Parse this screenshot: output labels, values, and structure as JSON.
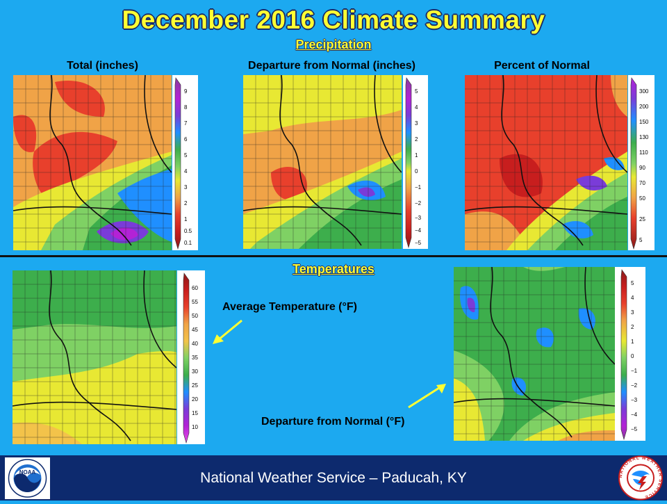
{
  "title": "December 2016 Climate Summary",
  "precipitation": {
    "heading": "Precipitation",
    "panels": [
      {
        "label": "Total (inches)",
        "legend": [
          "9",
          "8",
          "7",
          "6",
          "5",
          "4",
          "3",
          "2",
          "1",
          "0.5",
          "0.1"
        ]
      },
      {
        "label": "Departure  from Normal (inches)",
        "legend": [
          "5",
          "4",
          "3",
          "2",
          "1",
          "0",
          "−1",
          "−2",
          "−3",
          "−4",
          "−5"
        ]
      },
      {
        "label": "Percent of Normal",
        "legend": [
          "300",
          "200",
          "150",
          "130",
          "110",
          "90",
          "70",
          "50",
          "25",
          "5"
        ]
      }
    ]
  },
  "temperatures": {
    "heading": "Temperatures",
    "panels": [
      {
        "label": "Average Temperature (°F)",
        "legend": [
          "60",
          "55",
          "50",
          "45",
          "40",
          "35",
          "30",
          "25",
          "20",
          "15",
          "10"
        ]
      },
      {
        "label": "Departure  from Normal (°F)",
        "legend": [
          "5",
          "4",
          "3",
          "2",
          "1",
          "0",
          "−1",
          "−2",
          "−3",
          "−4",
          "−5"
        ]
      }
    ]
  },
  "footer": "National Weather Service – Paducah, KY",
  "logos": {
    "noaa": "NOAA",
    "nws": "NATIONAL WEATHER SERVICE"
  },
  "colors": {
    "background": "#1ca9f0",
    "title": "#ffff33",
    "footer": "#0d2a6e",
    "precip_ramp": [
      "#8a3d9b",
      "#b322d6",
      "#7a3cd8",
      "#1f8fff",
      "#3dae4c",
      "#7fd164",
      "#e8e833",
      "#f0a347",
      "#e8402c",
      "#c81e1e",
      "#8b1a1a"
    ],
    "temp_ramp": [
      "#c81e1e",
      "#e8402c",
      "#f0a347",
      "#f3c34a",
      "#e8e833",
      "#7fd164",
      "#3dae4c",
      "#1f8fff",
      "#7a3cd8",
      "#b322d6",
      "#e64ce6"
    ],
    "departure_ramp": [
      "#8a3d9b",
      "#b322d6",
      "#7a3cd8",
      "#1f8fff",
      "#3dae4c",
      "#7fd164",
      "#e8e833",
      "#f0a347",
      "#e8402c",
      "#c81e1e",
      "#8b1a1a"
    ]
  }
}
